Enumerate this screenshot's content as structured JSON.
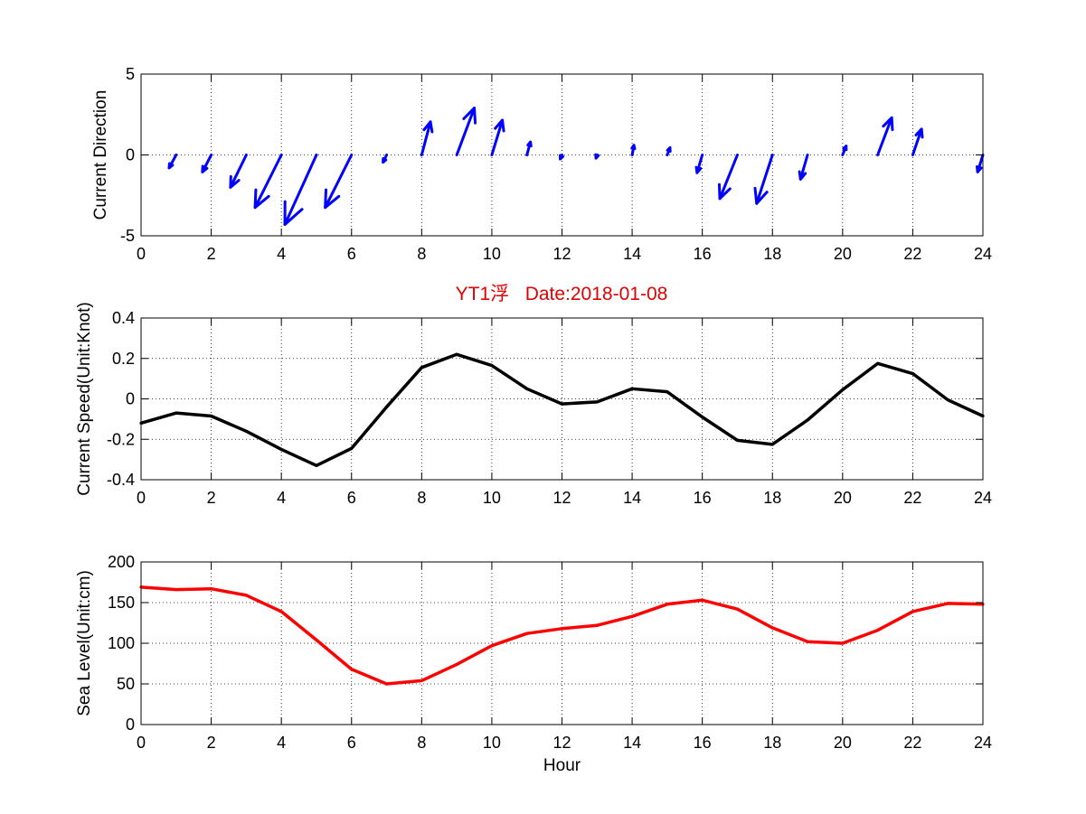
{
  "figure_title": "YT1浮   Date:2018-01-08",
  "colors": {
    "direction": "#0000ff",
    "speed": "#000000",
    "sea_level": "#ff0000",
    "title": "#e00000"
  },
  "chart_data": [
    {
      "type": "quiver",
      "ylabel": "Current Direction",
      "xlabel": "",
      "xlim": [
        0,
        24
      ],
      "ylim": [
        -5,
        5
      ],
      "xticks": [
        0,
        2,
        4,
        6,
        8,
        10,
        12,
        14,
        16,
        18,
        20,
        22,
        24
      ],
      "yticks": [
        -5,
        0,
        5
      ],
      "grid": true,
      "series": [
        {
          "x": [
            1,
            2,
            3,
            4,
            5,
            6,
            7,
            8,
            9,
            10,
            11,
            12,
            13,
            14,
            15,
            16,
            17,
            18,
            19,
            20,
            21,
            22,
            24
          ],
          "u": [
            -0.2,
            -0.25,
            -0.45,
            -0.75,
            -0.9,
            -0.75,
            -0.1,
            0.25,
            0.5,
            0.3,
            0.1,
            -0.05,
            -0.03,
            0.05,
            0.08,
            -0.15,
            -0.5,
            -0.45,
            -0.2,
            0.1,
            0.4,
            0.25,
            -0.15
          ],
          "v": [
            -0.8,
            -1.05,
            -2.0,
            -3.25,
            -4.3,
            -3.25,
            -0.45,
            2.05,
            2.9,
            2.15,
            0.8,
            -0.25,
            -0.2,
            0.6,
            0.45,
            -1.1,
            -2.7,
            -3.0,
            -1.5,
            0.55,
            2.3,
            1.6,
            -1.05
          ]
        }
      ]
    },
    {
      "type": "line",
      "ylabel": "Current Speed(Unit:Knot)",
      "xlabel": "",
      "xlim": [
        0,
        24
      ],
      "ylim": [
        -0.4,
        0.4
      ],
      "xticks": [
        0,
        2,
        4,
        6,
        8,
        10,
        12,
        14,
        16,
        18,
        20,
        22,
        24
      ],
      "yticks": [
        -0.4,
        -0.2,
        0,
        0.2,
        0.4
      ],
      "grid": true,
      "series": [
        {
          "x": [
            0,
            1,
            2,
            3,
            4,
            5,
            6,
            7,
            8,
            9,
            10,
            11,
            12,
            13,
            14,
            15,
            16,
            17,
            18,
            19,
            20,
            21,
            22,
            23,
            24
          ],
          "values": [
            -0.12,
            -0.07,
            -0.085,
            -0.16,
            -0.25,
            -0.33,
            -0.245,
            -0.04,
            0.155,
            0.22,
            0.165,
            0.05,
            -0.025,
            -0.015,
            0.05,
            0.035,
            -0.09,
            -0.205,
            -0.225,
            -0.105,
            0.045,
            0.175,
            0.125,
            -0.005,
            -0.085
          ]
        }
      ]
    },
    {
      "type": "line",
      "ylabel": "Sea Level(Unit:cm)",
      "xlabel": "Hour",
      "xlim": [
        0,
        24
      ],
      "ylim": [
        0,
        200
      ],
      "xticks": [
        0,
        2,
        4,
        6,
        8,
        10,
        12,
        14,
        16,
        18,
        20,
        22,
        24
      ],
      "yticks": [
        0,
        50,
        100,
        150,
        200
      ],
      "grid": true,
      "series": [
        {
          "x": [
            0,
            1,
            2,
            3,
            4,
            5,
            6,
            7,
            8,
            9,
            10,
            11,
            12,
            13,
            14,
            15,
            16,
            17,
            18,
            19,
            20,
            21,
            22,
            23,
            24
          ],
          "values": [
            169,
            166,
            167,
            159,
            139,
            104,
            68,
            50,
            54,
            74,
            97,
            112,
            118,
            122,
            133,
            148,
            153,
            142,
            119,
            102,
            100,
            116,
            139,
            149,
            148
          ]
        }
      ]
    }
  ]
}
